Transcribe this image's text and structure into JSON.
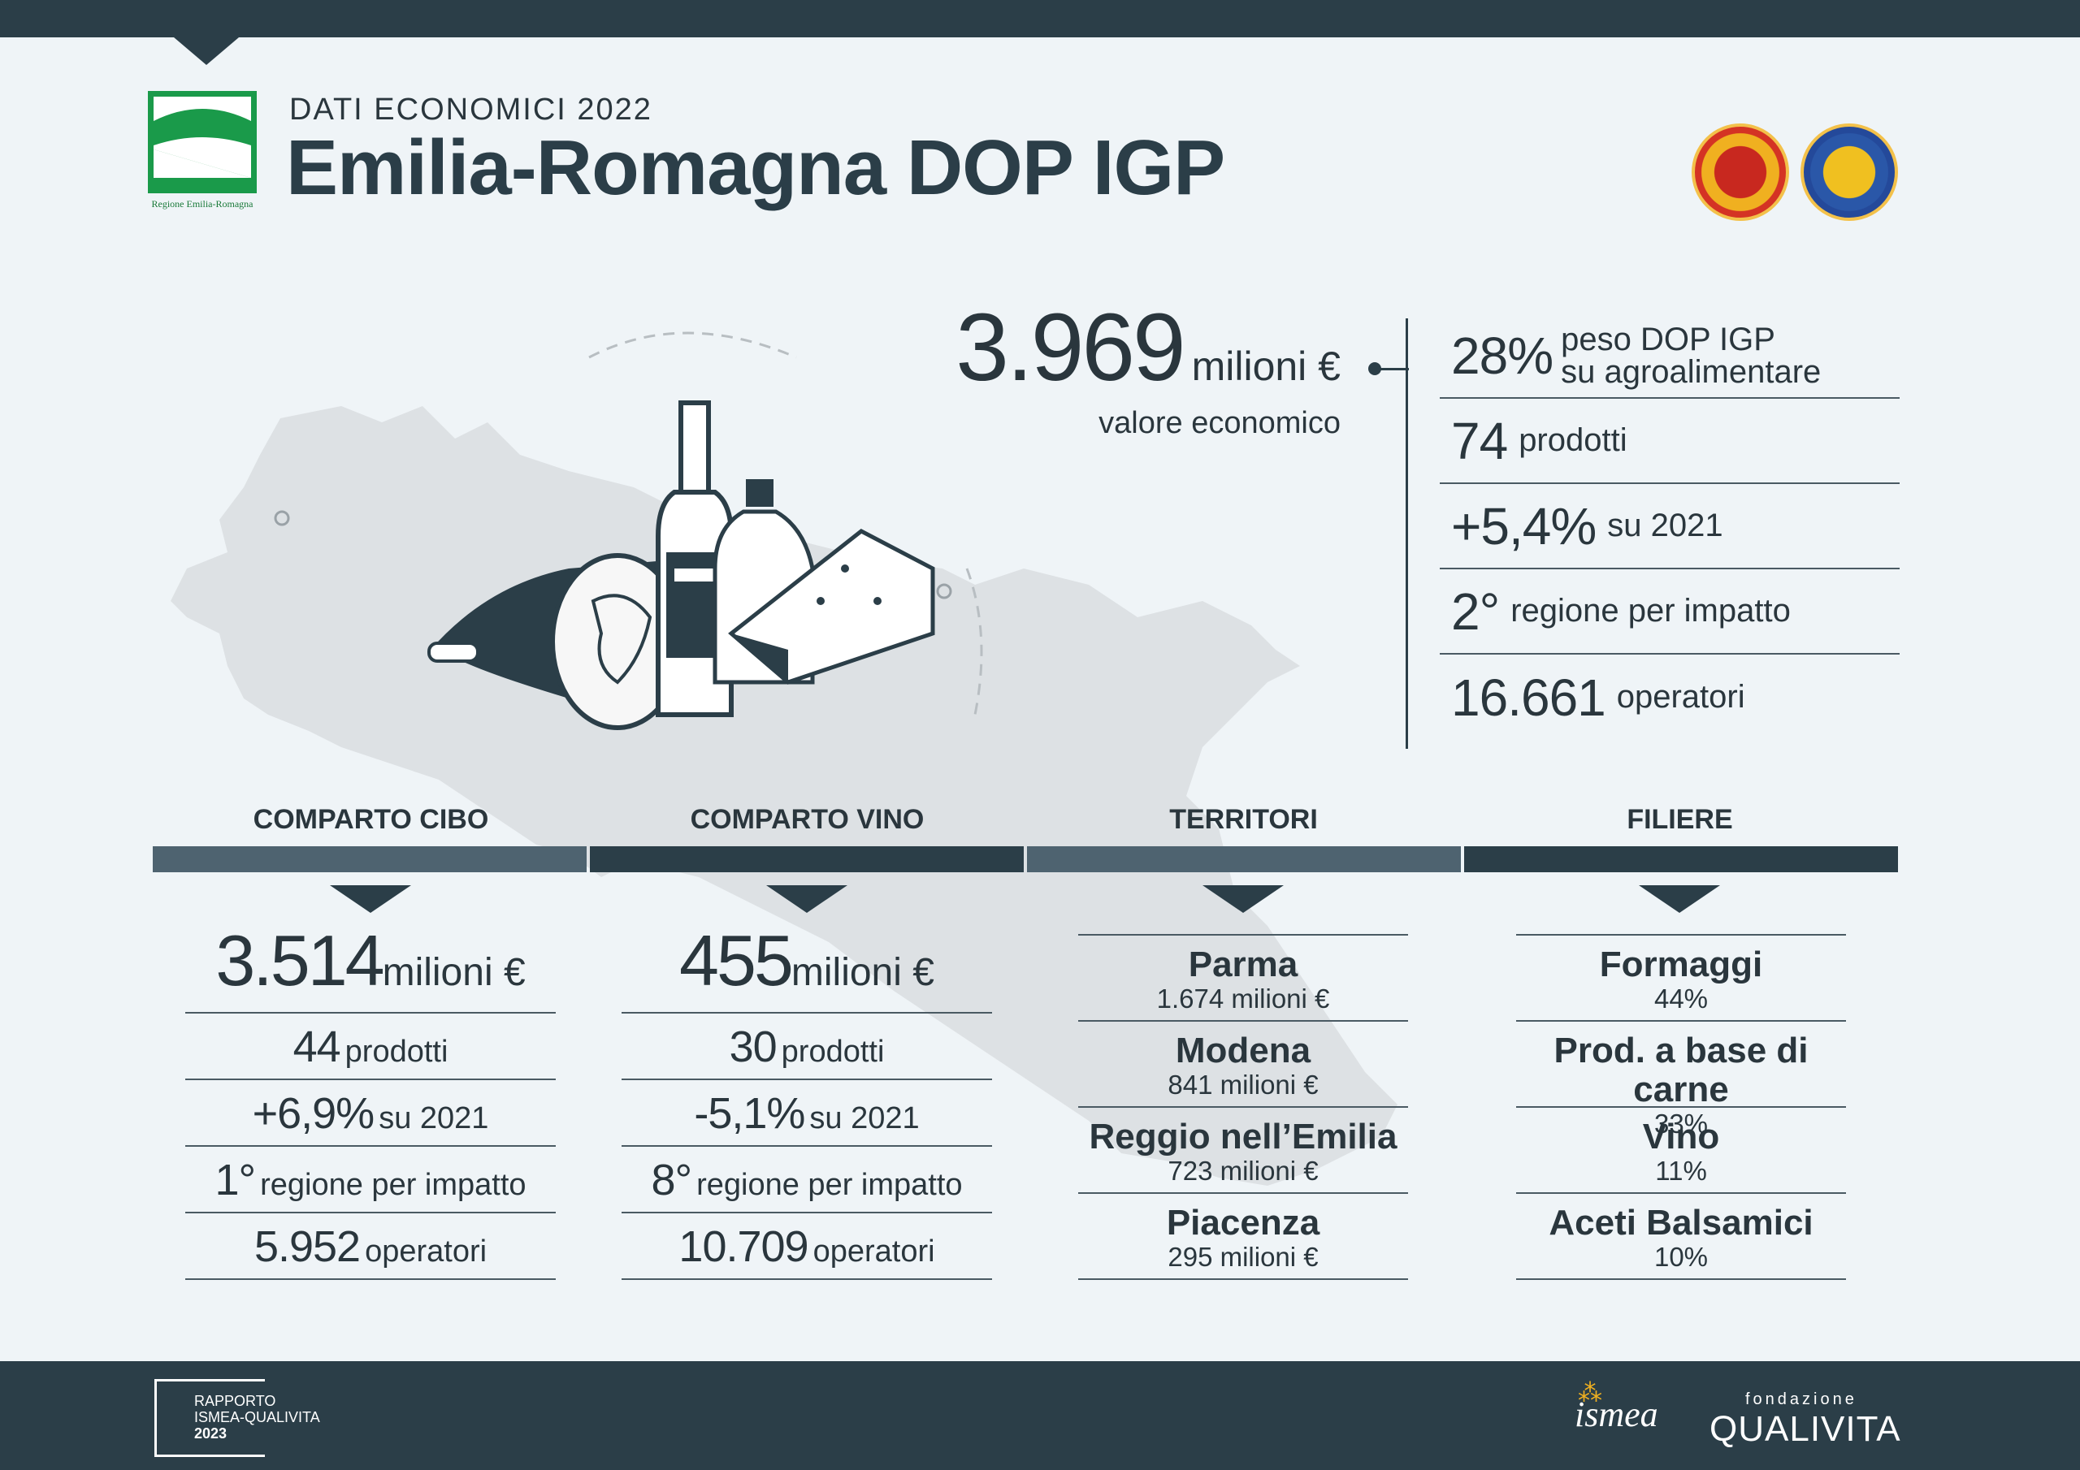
{
  "header": {
    "subtitle": "DATI ECONOMICI 2022",
    "title": "Emilia-Romagna DOP IGP",
    "region_logo_caption": "Regione Emilia-Romagna",
    "seals": [
      "dop-seal-icon",
      "igp-seal-icon"
    ]
  },
  "headline": {
    "value": "3.969",
    "unit": "milioni €",
    "label": "valore economico"
  },
  "stats": [
    {
      "num": "28%",
      "text": "peso DOP IGP",
      "text2": "su agroalimentare"
    },
    {
      "num": "74",
      "text": "prodotti"
    },
    {
      "num": "+5,4%",
      "text": "su 2021"
    },
    {
      "num": "2°",
      "text": "regione per impatto"
    },
    {
      "num": "16.661",
      "text": "operatori"
    }
  ],
  "sections": {
    "cibo": {
      "heading": "COMPARTO CIBO",
      "value": "3.514",
      "unit": "milioni €",
      "prodotti_n": "44",
      "prodotti_t": "prodotti",
      "var_n": "+6,9%",
      "var_t": "su 2021",
      "rank_n": "1°",
      "rank_t": "regione per impatto",
      "oper_n": "5.952",
      "oper_t": "operatori"
    },
    "vino": {
      "heading": "COMPARTO VINO",
      "value": "455",
      "unit": "milioni €",
      "prodotti_n": "30",
      "prodotti_t": "prodotti",
      "var_n": "-5,1%",
      "var_t": "su 2021",
      "rank_n": "8°",
      "rank_t": "regione per impatto",
      "oper_n": "10.709",
      "oper_t": "operatori"
    },
    "territori": {
      "heading": "TERRITORI",
      "items": [
        {
          "name": "Parma",
          "value": "1.674 milioni €"
        },
        {
          "name": "Modena",
          "value": "841 milioni €"
        },
        {
          "name": "Reggio nell’Emilia",
          "value": "723 milioni €"
        },
        {
          "name": "Piacenza",
          "value": "295 milioni €"
        }
      ]
    },
    "filiere": {
      "heading": "FILIERE",
      "items": [
        {
          "name": "Formaggi",
          "value": "44%"
        },
        {
          "name": "Prod. a base di carne",
          "value": "33%"
        },
        {
          "name": "Vino",
          "value": "11%"
        },
        {
          "name": "Aceti Balsamici",
          "value": "10%"
        }
      ]
    }
  },
  "footer": {
    "rapporto_line1": "RAPPORTO",
    "rapporto_line2": "ISMEA-QUALIVITA",
    "rapporto_year": "2023",
    "ismea": "ismea",
    "qualivita_small": "fondazione",
    "qualivita": "QUALIVITA"
  },
  "colors": {
    "dark": "#2b3e48",
    "mid": "#4e6370",
    "background": "#eff4f7",
    "map": "#dde1e4"
  }
}
